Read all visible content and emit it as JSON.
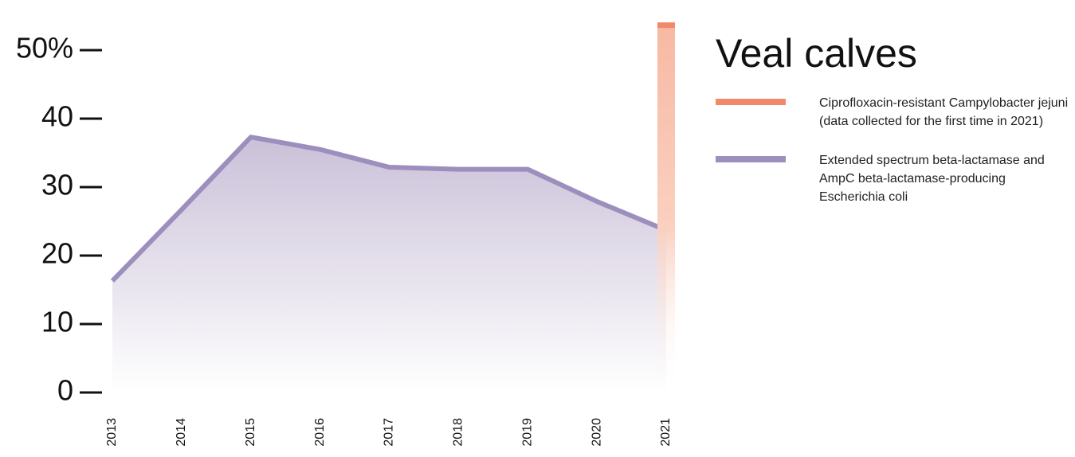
{
  "chart_data": {
    "type": "line",
    "title": "Veal calves",
    "categories": [
      "2013",
      "2014",
      "2015",
      "2016",
      "2017",
      "2018",
      "2019",
      "2020",
      "2021"
    ],
    "series": [
      {
        "name": "Ciprofloxacin-resistant Campylobacter jejuni (data collected for the first time in 2021)",
        "color": "#f08a6a",
        "type": "bar",
        "values": [
          null,
          null,
          null,
          null,
          null,
          null,
          null,
          null,
          54
        ]
      },
      {
        "name": "Extended spectrum beta-lactamase and AmpC beta-lactamase-producing Escherichia coli",
        "color": "#9d8fbd",
        "type": "line",
        "values": [
          16.3,
          26.7,
          37.3,
          35.5,
          32.9,
          32.6,
          32.6,
          27.9,
          23.7
        ]
      }
    ],
    "ylim": [
      0,
      55
    ],
    "yticks": [
      0,
      10,
      20,
      30,
      40,
      {
        "value": 50,
        "label": "50%"
      }
    ]
  }
}
